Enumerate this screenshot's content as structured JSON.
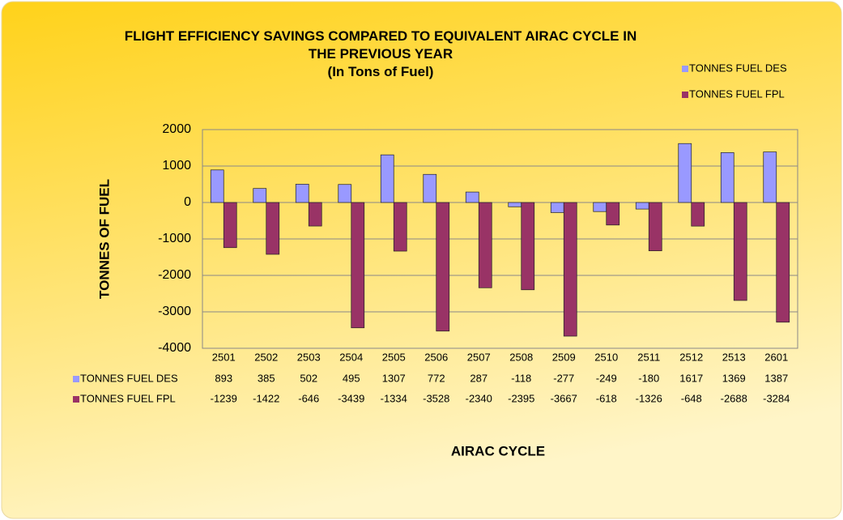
{
  "chart_data": {
    "type": "bar",
    "title": "FLIGHT EFFICIENCY SAVINGS COMPARED TO EQUIVALENT AIRAC CYCLE IN THE PREVIOUS YEAR",
    "subtitle": "(In Tons of Fuel)",
    "x_label": "AIRAC CYCLE",
    "y_label": "TONNES OF FUEL",
    "categories": [
      "2501",
      "2502",
      "2503",
      "2504",
      "2505",
      "2506",
      "2507",
      "2508",
      "2509",
      "2510",
      "2511",
      "2512",
      "2513",
      "2601"
    ],
    "series": [
      {
        "name": "TONNES FUEL DES",
        "color": "#9999ff",
        "values": [
          893,
          385,
          502,
          495,
          1307,
          772,
          287,
          -118,
          -277,
          -249,
          -180,
          1617,
          1369,
          1387
        ]
      },
      {
        "name": "TONNES FUEL FPL",
        "color": "#993366",
        "values": [
          -1239,
          -1422,
          -646,
          -3439,
          -1334,
          -3528,
          -2340,
          -2395,
          -3667,
          -618,
          -1326,
          -648,
          -2688,
          -3284
        ]
      }
    ],
    "ylim": [
      -4000,
      2000
    ],
    "yticks": [
      -4000,
      -3000,
      -2000,
      -1000,
      0,
      1000,
      2000
    ],
    "grid": true,
    "legend": "top-right",
    "data_table": true
  }
}
